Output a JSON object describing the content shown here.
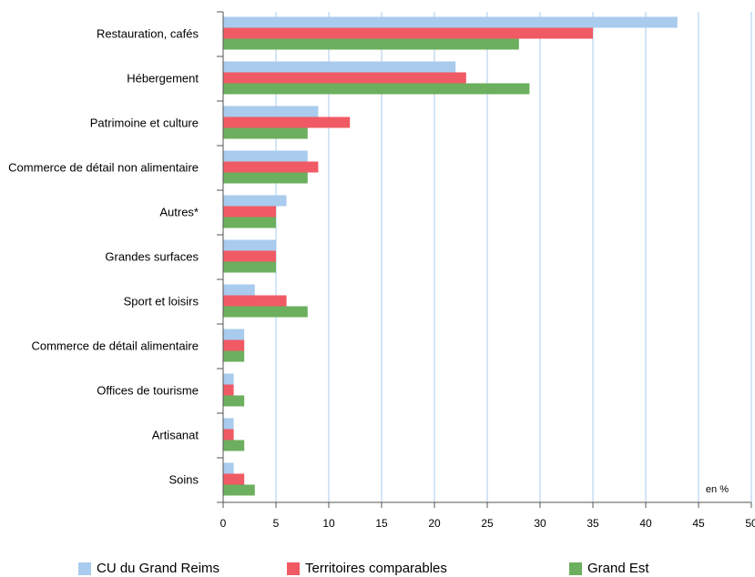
{
  "chart_data": {
    "type": "bar",
    "orientation": "horizontal",
    "categories": [
      "Restauration, cafés",
      "Hébergement",
      "Patrimoine et culture",
      "Commerce de détail non alimentaire",
      "Autres*",
      "Grandes surfaces",
      "Sport et loisirs",
      "Commerce de détail alimentaire",
      "Offices de tourisme",
      "Artisanat",
      "Soins"
    ],
    "series": [
      {
        "name": "CU du Grand Reims",
        "color": "#a9cbed",
        "values": [
          43,
          22,
          9,
          8,
          6,
          5,
          3,
          2,
          1,
          1,
          1
        ]
      },
      {
        "name": "Territoires comparables",
        "color": "#f05a64",
        "values": [
          35,
          23,
          12,
          9,
          5,
          5,
          6,
          2,
          1,
          1,
          2
        ]
      },
      {
        "name": "Grand Est",
        "color": "#6caf5e",
        "values": [
          28,
          29,
          8,
          8,
          5,
          5,
          8,
          2,
          2,
          2,
          3
        ]
      }
    ],
    "xlim": [
      0,
      50
    ],
    "xticks": [
      "0",
      "5",
      "10",
      "15",
      "20",
      "25",
      "30",
      "35",
      "40",
      "45",
      "50"
    ],
    "unit_label": "en %",
    "grid": "vertical",
    "legend_position": "bottom"
  }
}
